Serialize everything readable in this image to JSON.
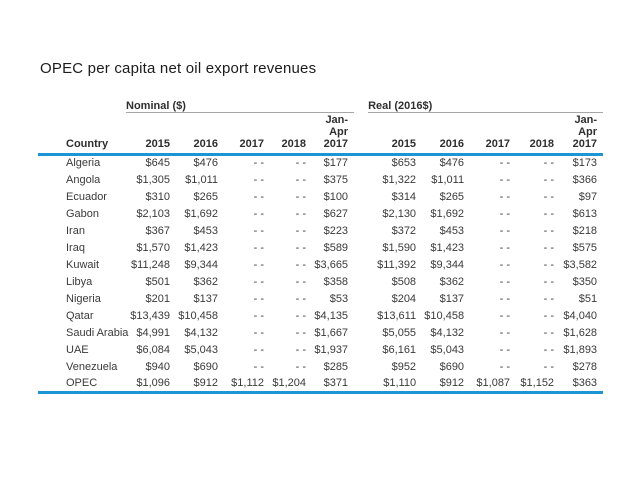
{
  "title": "OPEC per capita net oil export revenues",
  "colors": {
    "accent_blue": "#1b95d4",
    "rule_gray": "#a6a6a6",
    "text_dark": "#3a3a3a"
  },
  "header_display": {
    "country": "Country",
    "nominal": "Nominal ($)",
    "real": "Real (2016$)",
    "years": [
      "2015",
      "2016",
      "2017",
      "2018"
    ],
    "jan_apr": "Jan-\nApr\n2017"
  },
  "chart_data": {
    "type": "table",
    "title": "OPEC per capita net oil export revenues",
    "row_header": "Country",
    "column_groups": [
      {
        "label": "Nominal ($)",
        "columns": [
          "2015",
          "2016",
          "2017",
          "2018",
          "Jan-Apr 2017"
        ]
      },
      {
        "label": "Real (2016$)",
        "columns": [
          "2015",
          "2016",
          "2017",
          "2018",
          "Jan-Apr 2017"
        ]
      }
    ],
    "rows": [
      {
        "country": "Algeria",
        "nominal": [
          "$645",
          "$476",
          "- -",
          "- -",
          "$177"
        ],
        "real": [
          "$653",
          "$476",
          "- -",
          "- -",
          "$173"
        ]
      },
      {
        "country": "Angola",
        "nominal": [
          "$1,305",
          "$1,011",
          "- -",
          "- -",
          "$375"
        ],
        "real": [
          "$1,322",
          "$1,011",
          "- -",
          "- -",
          "$366"
        ]
      },
      {
        "country": "Ecuador",
        "nominal": [
          "$310",
          "$265",
          "- -",
          "- -",
          "$100"
        ],
        "real": [
          "$314",
          "$265",
          "- -",
          "- -",
          "$97"
        ]
      },
      {
        "country": "Gabon",
        "nominal": [
          "$2,103",
          "$1,692",
          "- -",
          "- -",
          "$627"
        ],
        "real": [
          "$2,130",
          "$1,692",
          "- -",
          "- -",
          "$613"
        ]
      },
      {
        "country": "Iran",
        "nominal": [
          "$367",
          "$453",
          "- -",
          "- -",
          "$223"
        ],
        "real": [
          "$372",
          "$453",
          "- -",
          "- -",
          "$218"
        ]
      },
      {
        "country": "Iraq",
        "nominal": [
          "$1,570",
          "$1,423",
          "- -",
          "- -",
          "$589"
        ],
        "real": [
          "$1,590",
          "$1,423",
          "- -",
          "- -",
          "$575"
        ]
      },
      {
        "country": "Kuwait",
        "nominal": [
          "$11,248",
          "$9,344",
          "- -",
          "- -",
          "$3,665"
        ],
        "real": [
          "$11,392",
          "$9,344",
          "- -",
          "- -",
          "$3,582"
        ]
      },
      {
        "country": "Libya",
        "nominal": [
          "$501",
          "$362",
          "- -",
          "- -",
          "$358"
        ],
        "real": [
          "$508",
          "$362",
          "- -",
          "- -",
          "$350"
        ]
      },
      {
        "country": "Nigeria",
        "nominal": [
          "$201",
          "$137",
          "- -",
          "- -",
          "$53"
        ],
        "real": [
          "$204",
          "$137",
          "- -",
          "- -",
          "$51"
        ]
      },
      {
        "country": "Qatar",
        "nominal": [
          "$13,439",
          "$10,458",
          "- -",
          "- -",
          "$4,135"
        ],
        "real": [
          "$13,611",
          "$10,458",
          "- -",
          "- -",
          "$4,040"
        ]
      },
      {
        "country": "Saudi Arabia",
        "nominal": [
          "$4,991",
          "$4,132",
          "- -",
          "- -",
          "$1,667"
        ],
        "real": [
          "$5,055",
          "$4,132",
          "- -",
          "- -",
          "$1,628"
        ]
      },
      {
        "country": "UAE",
        "nominal": [
          "$6,084",
          "$5,043",
          "- -",
          "- -",
          "$1,937"
        ],
        "real": [
          "$6,161",
          "$5,043",
          "- -",
          "- -",
          "$1,893"
        ]
      },
      {
        "country": "Venezuela",
        "nominal": [
          "$940",
          "$690",
          "- -",
          "- -",
          "$285"
        ],
        "real": [
          "$952",
          "$690",
          "- -",
          "- -",
          "$278"
        ]
      },
      {
        "country": "OPEC",
        "nominal": [
          "$1,096",
          "$912",
          "$1,112",
          "$1,204",
          "$371"
        ],
        "real": [
          "$1,110",
          "$912",
          "$1,087",
          "$1,152",
          "$363"
        ]
      }
    ]
  }
}
